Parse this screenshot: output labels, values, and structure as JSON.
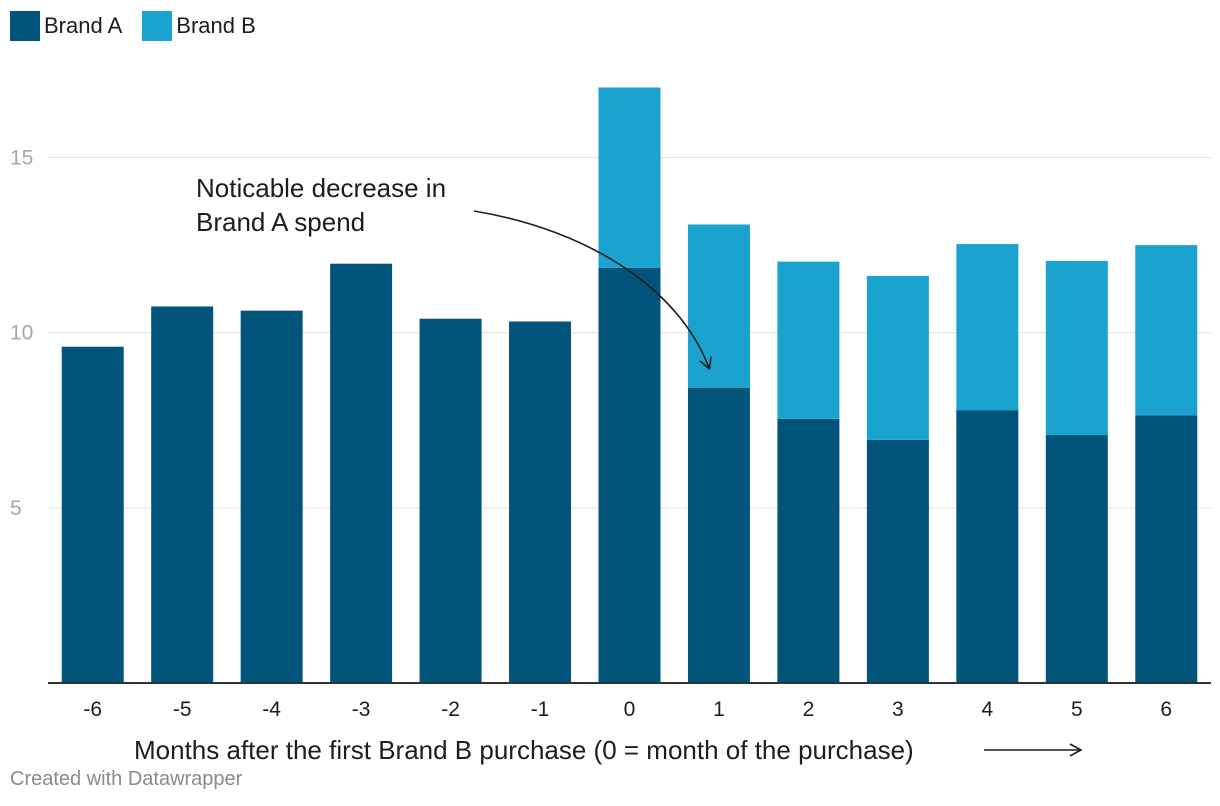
{
  "legend": {
    "items": [
      {
        "label": "Brand A",
        "color": "#03547b"
      },
      {
        "label": "Brand B",
        "color": "#1ba3cf"
      }
    ]
  },
  "chart_data": {
    "type": "bar",
    "stacked": true,
    "categories": [
      "-6",
      "-5",
      "-4",
      "-3",
      "-2",
      "-1",
      "0",
      "1",
      "2",
      "3",
      "4",
      "5",
      "6"
    ],
    "series": [
      {
        "name": "Brand A",
        "color": "#03547b",
        "values": [
          9.6,
          10.75,
          10.63,
          11.97,
          10.4,
          10.32,
          11.85,
          8.43,
          7.54,
          6.94,
          7.79,
          7.08,
          7.64
        ]
      },
      {
        "name": "Brand B",
        "color": "#1ba3cf",
        "values": [
          0,
          0,
          0,
          0,
          0,
          0,
          5.15,
          4.66,
          4.49,
          4.68,
          4.74,
          4.97,
          4.86
        ]
      }
    ],
    "ylim": [
      0,
      17.5
    ],
    "yticks": [
      5,
      10,
      15
    ],
    "grid": true,
    "xlabel": "Months after the first Brand B purchase (0 = month of the purchase)",
    "annotation": {
      "text_lines": [
        "Noticable decrease in",
        "Brand A spend"
      ]
    }
  },
  "footer": {
    "credit": "Created with Datawrapper"
  }
}
